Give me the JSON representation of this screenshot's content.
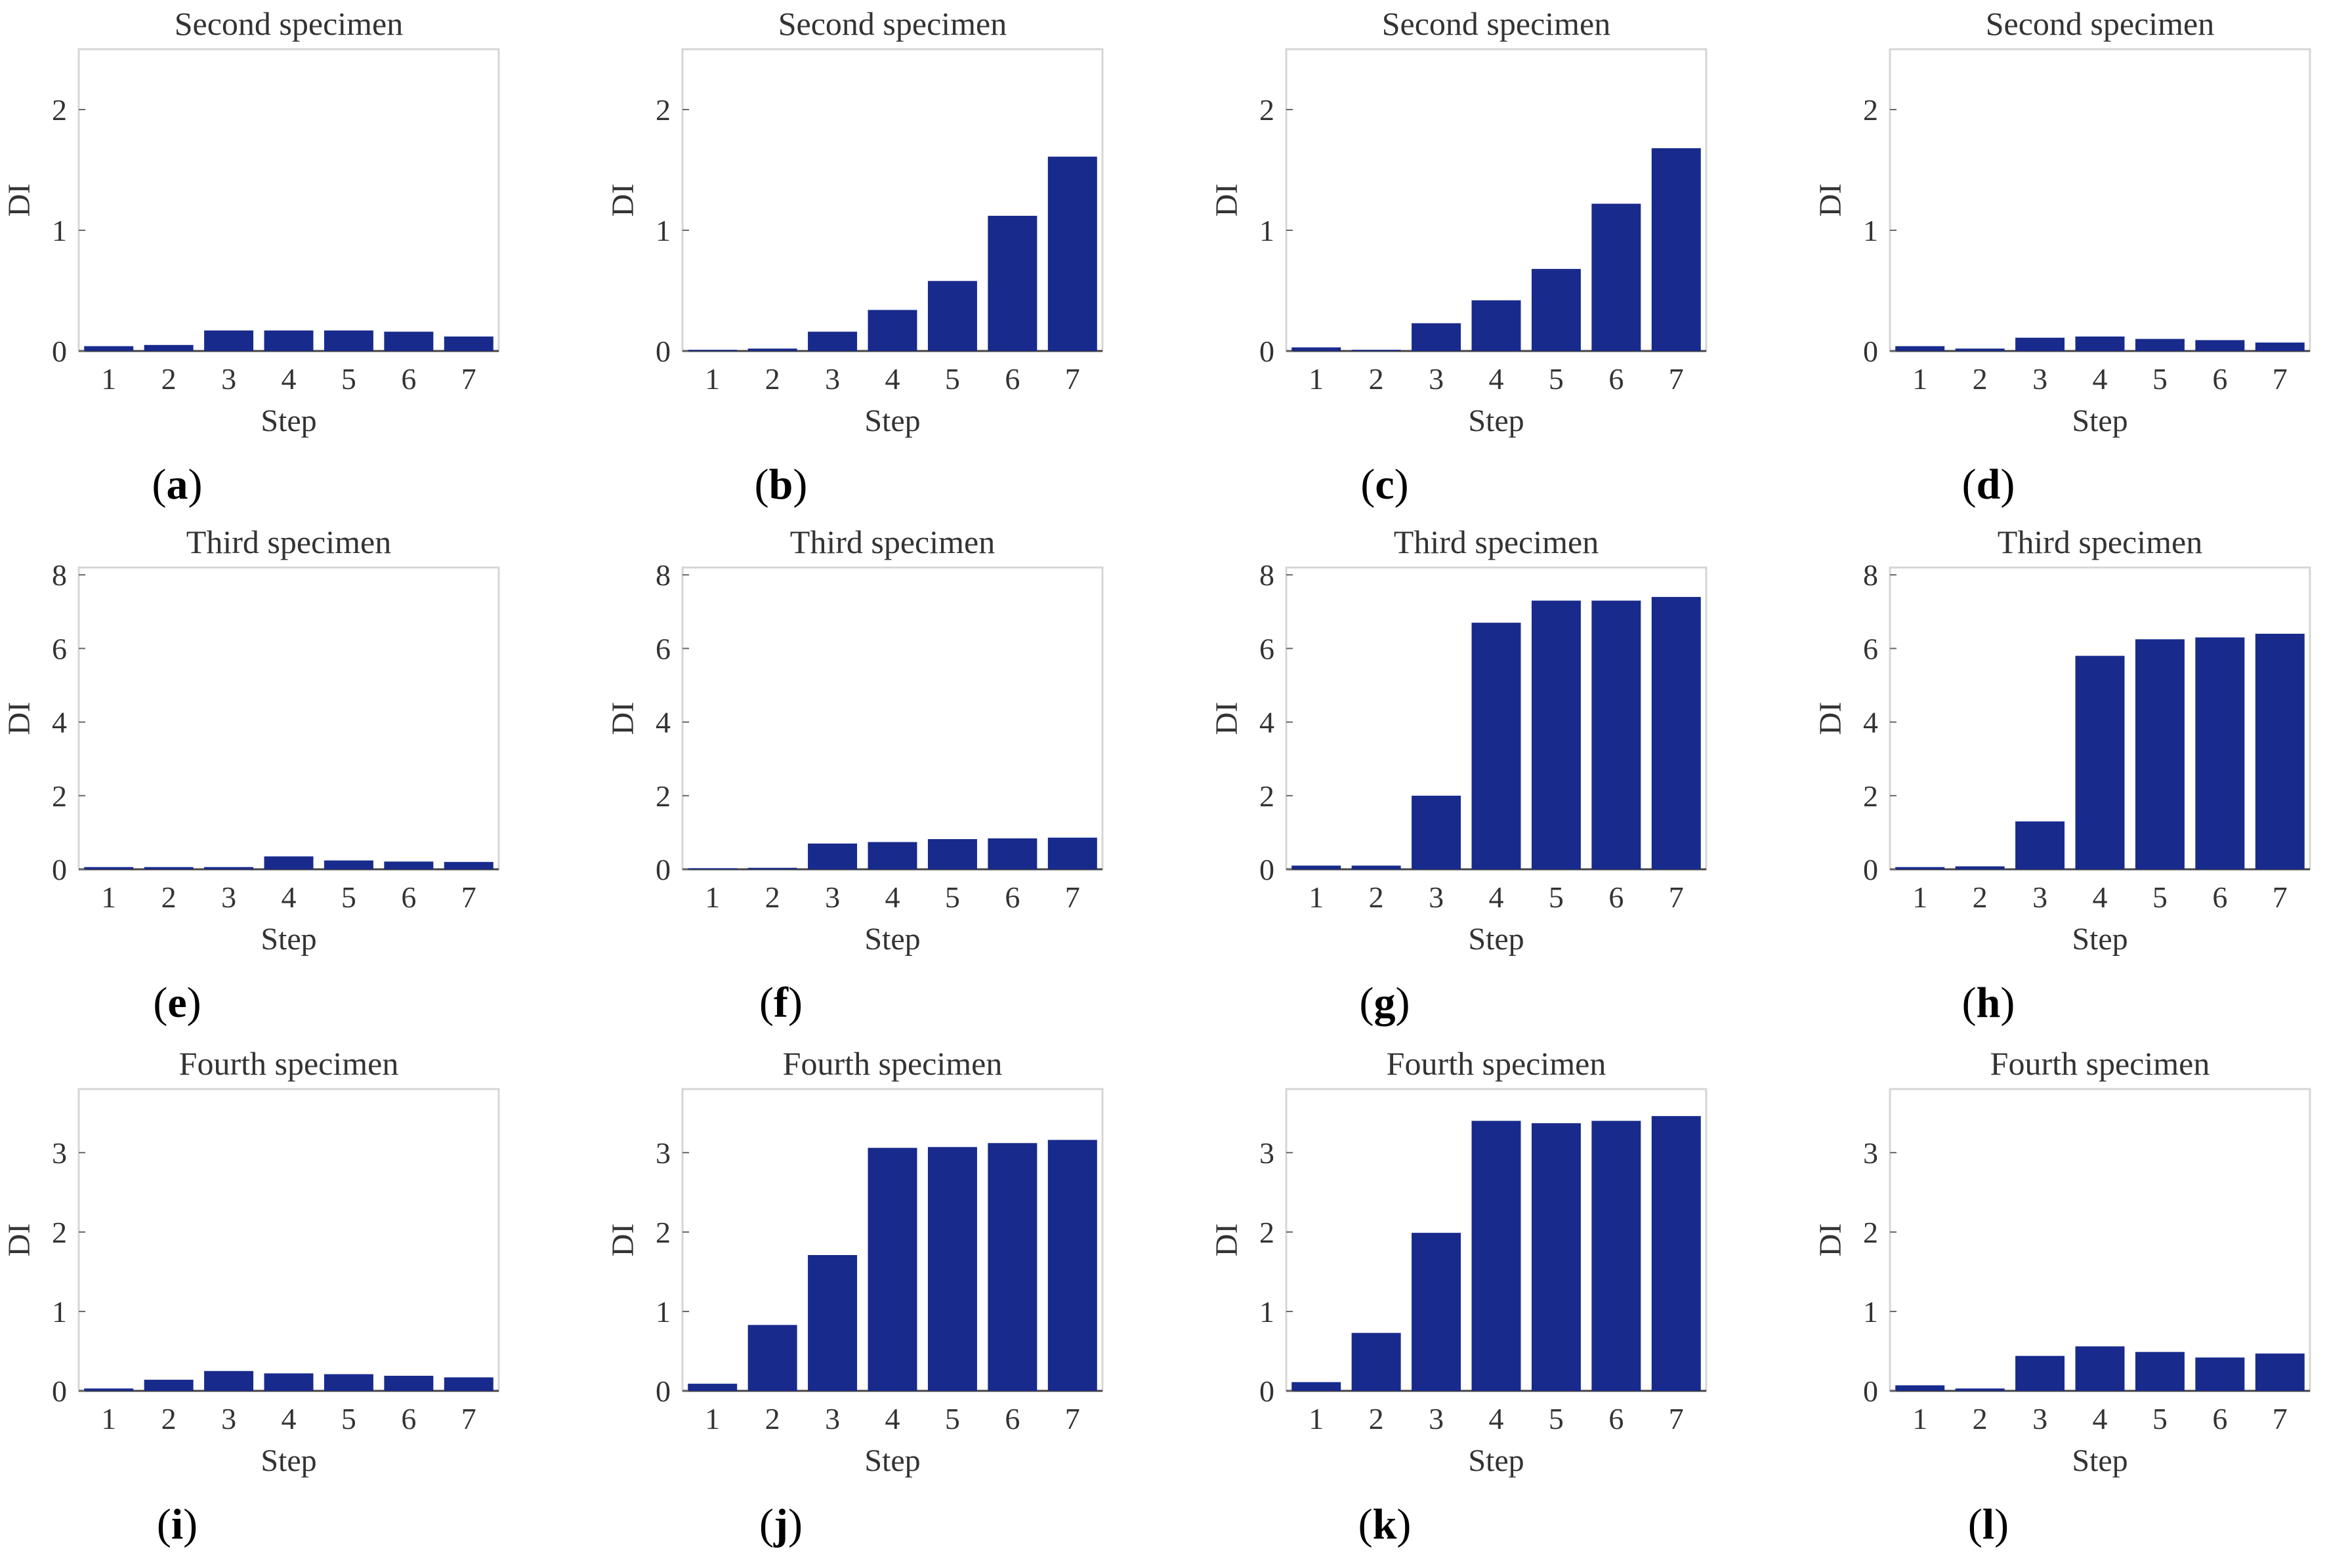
{
  "chart_data": [
    {
      "id": "a",
      "type": "bar",
      "title": "Second specimen",
      "xlabel": "Step",
      "ylabel": "DI",
      "categories": [
        "1",
        "2",
        "3",
        "4",
        "5",
        "6",
        "7"
      ],
      "values": [
        0.04,
        0.05,
        0.17,
        0.17,
        0.17,
        0.16,
        0.12
      ],
      "ylim": [
        0,
        2.5
      ],
      "yticks": [
        "0",
        "1",
        "2"
      ],
      "panel_label": "a"
    },
    {
      "id": "b",
      "type": "bar",
      "title": "Second specimen",
      "xlabel": "Step",
      "ylabel": "DI",
      "categories": [
        "1",
        "2",
        "3",
        "4",
        "5",
        "6",
        "7"
      ],
      "values": [
        0.01,
        0.02,
        0.16,
        0.34,
        0.58,
        1.12,
        1.61
      ],
      "ylim": [
        0,
        2.5
      ],
      "yticks": [
        "0",
        "1",
        "2"
      ],
      "panel_label": "b"
    },
    {
      "id": "c",
      "type": "bar",
      "title": "Second specimen",
      "xlabel": "Step",
      "ylabel": "DI",
      "categories": [
        "1",
        "2",
        "3",
        "4",
        "5",
        "6",
        "7"
      ],
      "values": [
        0.03,
        0.01,
        0.23,
        0.42,
        0.68,
        1.22,
        1.68
      ],
      "ylim": [
        0,
        2.5
      ],
      "yticks": [
        "0",
        "1",
        "2"
      ],
      "panel_label": "c"
    },
    {
      "id": "d",
      "type": "bar",
      "title": "Second specimen",
      "xlabel": "Step",
      "ylabel": "DI",
      "categories": [
        "1",
        "2",
        "3",
        "4",
        "5",
        "6",
        "7"
      ],
      "values": [
        0.04,
        0.02,
        0.11,
        0.12,
        0.1,
        0.09,
        0.07
      ],
      "ylim": [
        0,
        2.5
      ],
      "yticks": [
        "0",
        "1",
        "2"
      ],
      "panel_label": "d"
    },
    {
      "id": "e",
      "type": "bar",
      "title": "Third specimen",
      "xlabel": "Step",
      "ylabel": "DI",
      "categories": [
        "1",
        "2",
        "3",
        "4",
        "5",
        "6",
        "7"
      ],
      "values": [
        0.06,
        0.06,
        0.06,
        0.35,
        0.24,
        0.21,
        0.2
      ],
      "ylim": [
        0,
        8.2
      ],
      "yticks": [
        "0",
        "2",
        "4",
        "6",
        "8"
      ],
      "panel_label": "e"
    },
    {
      "id": "f",
      "type": "bar",
      "title": "Third specimen",
      "xlabel": "Step",
      "ylabel": "DI",
      "categories": [
        "1",
        "2",
        "3",
        "4",
        "5",
        "6",
        "7"
      ],
      "values": [
        0.03,
        0.04,
        0.7,
        0.74,
        0.82,
        0.84,
        0.86
      ],
      "ylim": [
        0,
        8.2
      ],
      "yticks": [
        "0",
        "2",
        "4",
        "6",
        "8"
      ],
      "panel_label": "f"
    },
    {
      "id": "g",
      "type": "bar",
      "title": "Third specimen",
      "xlabel": "Step",
      "ylabel": "DI",
      "categories": [
        "1",
        "2",
        "3",
        "4",
        "5",
        "6",
        "7"
      ],
      "values": [
        0.1,
        0.1,
        2.0,
        6.7,
        7.3,
        7.3,
        7.4
      ],
      "ylim": [
        0,
        8.2
      ],
      "yticks": [
        "0",
        "2",
        "4",
        "6",
        "8"
      ],
      "panel_label": "g"
    },
    {
      "id": "h",
      "type": "bar",
      "title": "Third specimen",
      "xlabel": "Step",
      "ylabel": "DI",
      "categories": [
        "1",
        "2",
        "3",
        "4",
        "5",
        "6",
        "7"
      ],
      "values": [
        0.06,
        0.08,
        1.3,
        5.8,
        6.25,
        6.3,
        6.4
      ],
      "ylim": [
        0,
        8.2
      ],
      "yticks": [
        "0",
        "2",
        "4",
        "6",
        "8"
      ],
      "panel_label": "h"
    },
    {
      "id": "i",
      "type": "bar",
      "title": "Fourth specimen",
      "xlabel": "Step",
      "ylabel": "DI",
      "categories": [
        "1",
        "2",
        "3",
        "4",
        "5",
        "6",
        "7"
      ],
      "values": [
        0.03,
        0.14,
        0.25,
        0.22,
        0.21,
        0.19,
        0.17
      ],
      "ylim": [
        0,
        3.8
      ],
      "yticks": [
        "0",
        "1",
        "2",
        "3"
      ],
      "panel_label": "i"
    },
    {
      "id": "j",
      "type": "bar",
      "title": "Fourth specimen",
      "xlabel": "Step",
      "ylabel": "DI",
      "categories": [
        "1",
        "2",
        "3",
        "4",
        "5",
        "6",
        "7"
      ],
      "values": [
        0.09,
        0.83,
        1.71,
        3.06,
        3.07,
        3.12,
        3.16
      ],
      "ylim": [
        0,
        3.8
      ],
      "yticks": [
        "0",
        "1",
        "2",
        "3"
      ],
      "panel_label": "j"
    },
    {
      "id": "k",
      "type": "bar",
      "title": "Fourth specimen",
      "xlabel": "Step",
      "ylabel": "DI",
      "categories": [
        "1",
        "2",
        "3",
        "4",
        "5",
        "6",
        "7"
      ],
      "values": [
        0.11,
        0.73,
        1.99,
        3.4,
        3.37,
        3.4,
        3.46
      ],
      "ylim": [
        0,
        3.8
      ],
      "yticks": [
        "0",
        "1",
        "2",
        "3"
      ],
      "panel_label": "k"
    },
    {
      "id": "l",
      "type": "bar",
      "title": "Fourth specimen",
      "xlabel": "Step",
      "ylabel": "DI",
      "categories": [
        "1",
        "2",
        "3",
        "4",
        "5",
        "6",
        "7"
      ],
      "values": [
        0.07,
        0.03,
        0.44,
        0.56,
        0.49,
        0.42,
        0.47
      ],
      "ylim": [
        0,
        3.8
      ],
      "yticks": [
        "0",
        "1",
        "2",
        "3"
      ],
      "panel_label": "l"
    }
  ],
  "style": {
    "bar_color": "#182a8c",
    "frame_color": "#d6d6d6",
    "text_color": "#333333"
  }
}
